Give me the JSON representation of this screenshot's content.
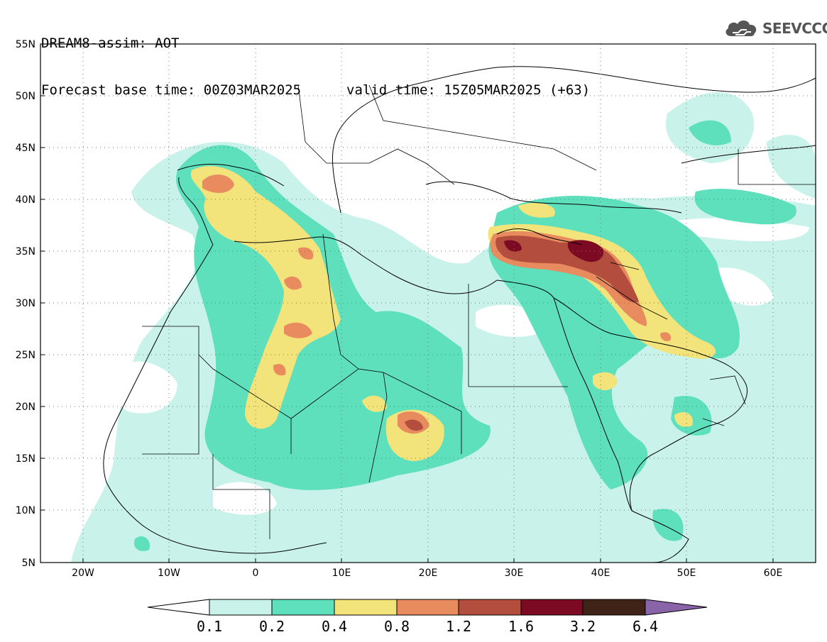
{
  "title": {
    "line1": "DREAM8-assim: AOT",
    "base_time": "Forecast base time: 00Z03MAR2025",
    "valid_time": "valid time: 15Z05MAR2025 (+63)"
  },
  "logo": {
    "text": "SEEVCCC",
    "icon": "cloud-icon"
  },
  "map": {
    "lat_labels": [
      "55N",
      "50N",
      "45N",
      "40N",
      "35N",
      "30N",
      "25N",
      "20N",
      "15N",
      "10N",
      "5N"
    ],
    "lon_labels": [
      "20W",
      "10W",
      "0",
      "10E",
      "20E",
      "30E",
      "40E",
      "50E",
      "60E"
    ],
    "lat_range": [
      5,
      55
    ],
    "lon_range": [
      -25,
      65
    ],
    "grid": "dotted"
  },
  "colorbar": {
    "thresholds": [
      "0.1",
      "0.2",
      "0.4",
      "0.8",
      "1.2",
      "1.6",
      "3.2",
      "6.4"
    ],
    "colors": {
      "below": "#ffffff",
      "c1": "#c9f3ea",
      "c2": "#5ee0bd",
      "c3": "#f2e37a",
      "c4": "#e88c60",
      "c5": "#b34e3e",
      "c6": "#7c0a22",
      "c7": "#3f2317",
      "above": "#8a64a8"
    }
  }
}
